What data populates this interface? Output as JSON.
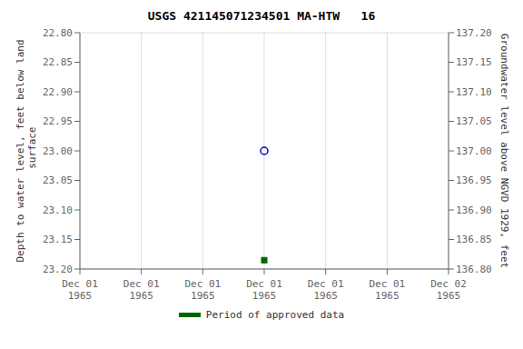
{
  "chart_data": {
    "type": "scatter",
    "title": "USGS 421145071234501 MA-HTW   16",
    "y_label": "Depth to water level, feet below land\n surface",
    "y2_label": "Groundwater level above NGVD 1929, feet",
    "categories": [
      "Dec 01\n1965",
      "Dec 01\n1965",
      "Dec 01\n1965",
      "Dec 01\n1965",
      "Dec 01\n1965",
      "Dec 01\n1965",
      "Dec 02\n1965"
    ],
    "series": [
      {
        "color": "#0000cc",
        "marker": "open_circle",
        "values": [
          null,
          null,
          null,
          23.0,
          null,
          null,
          null
        ]
      },
      {
        "name": "Period of approved data",
        "color": "#006600",
        "marker": "square",
        "values": [
          null,
          null,
          null,
          23.185,
          null,
          null,
          null
        ]
      }
    ],
    "ylim": [
      23.2,
      22.8
    ],
    "yticks": [
      {
        "value": 22.8,
        "label": "22.80"
      },
      22.85,
      {
        "value": 22.9,
        "label": "22.90"
      },
      22.95,
      {
        "value": 23.0,
        "label": "23.00"
      },
      23.05,
      {
        "value": 23.1,
        "label": "23.10"
      },
      23.15,
      {
        "value": 23.2,
        "label": "23.20"
      }
    ],
    "y2lim": [
      136.8,
      137.2
    ],
    "y2ticks": [
      {
        "value": 136.8,
        "label": "136.80"
      },
      136.85,
      {
        "value": 136.9,
        "label": "136.90"
      },
      136.95,
      {
        "value": 137.0,
        "label": "137.00"
      },
      137.05,
      {
        "value": 137.1,
        "label": "137.10"
      },
      137.15,
      {
        "value": 137.2,
        "label": "137.20"
      }
    ],
    "grid": true,
    "legend": "bottom"
  }
}
